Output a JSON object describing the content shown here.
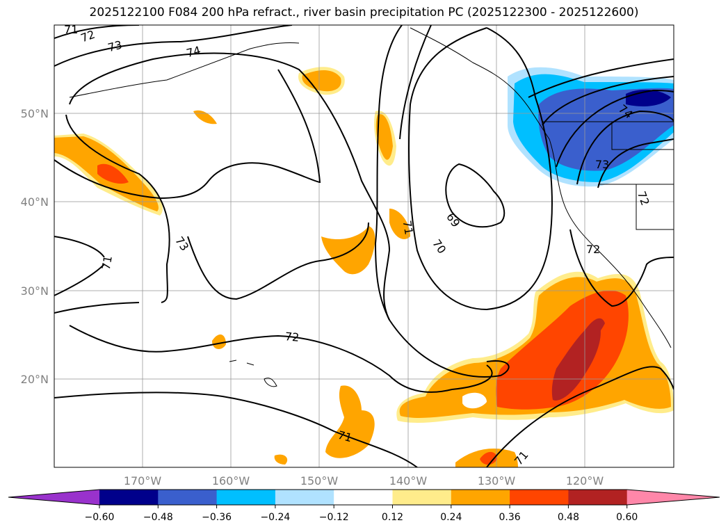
{
  "title": "2025122100 F084 200 hPa refract., river basin precipitation PC (2025122300 - 2025122600)",
  "map": {
    "extent": {
      "lon": [
        -180,
        -110
      ],
      "lat": [
        10,
        60
      ]
    },
    "lat_labels": [
      "50°N",
      "40°N",
      "30°N",
      "20°N"
    ],
    "lon_labels": [
      "170°W",
      "160°W",
      "150°W",
      "140°W",
      "130°W",
      "120°W"
    ],
    "contour_labels": [
      "71",
      "72",
      "73",
      "74",
      "73",
      "71",
      "72",
      "71",
      "71",
      "69",
      "70",
      "71",
      "72",
      "73",
      "74",
      "72"
    ]
  },
  "colorbar": {
    "ticks": [
      "−0.60",
      "−0.48",
      "−0.36",
      "−0.24",
      "−0.12",
      "0.12",
      "0.24",
      "0.36",
      "0.48",
      "0.60"
    ],
    "colors": [
      "#9932cc",
      "#00008b",
      "#3a5fcd",
      "#00bfff",
      "#b0e2ff",
      "#ffffff",
      "#ffec8b",
      "#ffa500",
      "#ff4500",
      "#b22222",
      "#ff87a9"
    ]
  }
}
